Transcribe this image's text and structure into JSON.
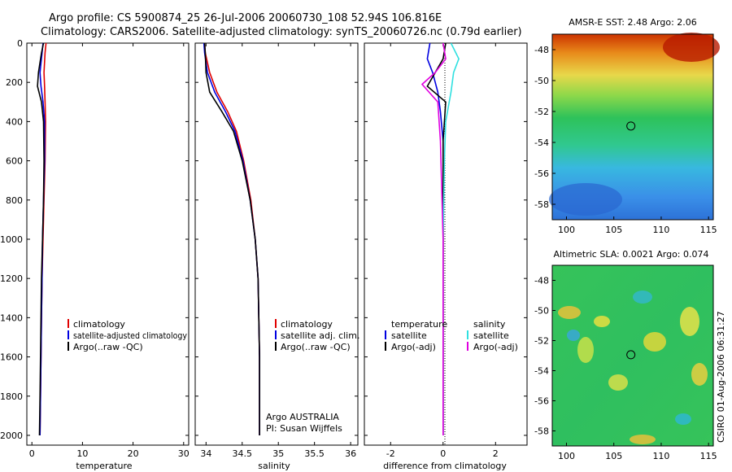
{
  "title_line1": "Argo profile: CS 5900874_25 26-Jul-2006 20060730_108 52.94S 106.816E",
  "title_line2": "Climatology: CARS2006. Satellite-adjusted climatology: synTS_20060726.nc (0.79d earlier)",
  "credit": "CSIRO 01-Aug-2006 06:31:27",
  "colors": {
    "red": "#e00000",
    "blue": "#0000e0",
    "black": "#000000",
    "cyan": "#30e0e0",
    "magenta": "#e000e0"
  },
  "chart_data": [
    {
      "type": "line",
      "xlabel": "temperature",
      "ylabel": "",
      "xlim": [
        -1,
        31
      ],
      "ylim": [
        2050,
        0
      ],
      "xticks": [
        0,
        10,
        20,
        30
      ],
      "yticks": [
        0,
        200,
        400,
        600,
        800,
        1000,
        1200,
        1400,
        1600,
        1800,
        2000
      ],
      "legend": {
        "placement": "center-right",
        "entries": [
          "climatology",
          "satellite-adjusted climatology",
          "Argo(..raw -QC)"
        ]
      },
      "series": [
        {
          "name": "climatology",
          "color": "red",
          "x": [
            2.8,
            2.6,
            2.4,
            2.5,
            2.6,
            2.7,
            2.6,
            2.4,
            2.2,
            2.0,
            1.9,
            1.8,
            1.7,
            1.6
          ],
          "y": [
            0,
            50,
            150,
            220,
            300,
            400,
            600,
            800,
            1000,
            1200,
            1400,
            1600,
            1800,
            2000
          ]
        },
        {
          "name": "satellite-adjusted climatology",
          "color": "blue",
          "x": [
            2.2,
            2.0,
            1.6,
            1.8,
            2.2,
            2.5,
            2.5,
            2.3,
            2.1,
            2.0,
            1.9,
            1.8,
            1.7,
            1.6
          ],
          "y": [
            0,
            50,
            150,
            220,
            300,
            400,
            600,
            800,
            1000,
            1200,
            1400,
            1600,
            1800,
            2000
          ]
        },
        {
          "name": "Argo(..raw -QC)",
          "color": "black",
          "x": [
            2.3,
            1.9,
            1.3,
            1.1,
            1.9,
            2.3,
            2.4,
            2.3,
            2.1,
            1.9,
            1.8,
            1.7,
            1.6,
            1.5
          ],
          "y": [
            0,
            50,
            150,
            220,
            300,
            400,
            600,
            800,
            1000,
            1200,
            1400,
            1600,
            1800,
            2000
          ]
        }
      ]
    },
    {
      "type": "line",
      "xlabel": "salinity",
      "ylabel": "",
      "xlim": [
        33.85,
        36.1
      ],
      "ylim": [
        2050,
        0
      ],
      "xticks": [
        34,
        34.5,
        35,
        35.5,
        36
      ],
      "yticks": [
        0,
        200,
        400,
        600,
        800,
        1000,
        1200,
        1400,
        1600,
        1800,
        2000
      ],
      "legend": {
        "placement": "center-right",
        "entries": [
          "climatology",
          "satellite adj. clim.",
          "Argo(..raw -QC)"
        ]
      },
      "annotations": [
        "Argo AUSTRALIA",
        "PI: Susan Wijffels"
      ],
      "series": [
        {
          "name": "climatology",
          "color": "red",
          "x": [
            33.98,
            33.99,
            34.05,
            34.15,
            34.3,
            34.42,
            34.52,
            34.62,
            34.68,
            34.72,
            34.73,
            34.74,
            34.74,
            34.74
          ],
          "y": [
            0,
            50,
            150,
            250,
            350,
            450,
            600,
            800,
            1000,
            1200,
            1400,
            1600,
            1800,
            2000
          ]
        },
        {
          "name": "satellite adj. clim.",
          "color": "blue",
          "x": [
            33.97,
            33.98,
            34.02,
            34.12,
            34.27,
            34.4,
            34.51,
            34.61,
            34.68,
            34.72,
            34.73,
            34.74,
            34.74,
            34.74
          ],
          "y": [
            0,
            50,
            150,
            250,
            350,
            450,
            600,
            800,
            1000,
            1200,
            1400,
            1600,
            1800,
            2000
          ]
        },
        {
          "name": "Argo(..raw -QC)",
          "color": "black",
          "x": [
            33.98,
            33.99,
            34.0,
            34.05,
            34.22,
            34.38,
            34.5,
            34.61,
            34.68,
            34.72,
            34.73,
            34.74,
            34.74,
            34.74
          ],
          "y": [
            0,
            50,
            150,
            250,
            350,
            450,
            600,
            800,
            1000,
            1200,
            1400,
            1600,
            1800,
            2000
          ]
        }
      ]
    },
    {
      "type": "line",
      "xlabel": "difference from climatology",
      "ylabel": "",
      "xlim": [
        -3,
        3.2
      ],
      "ylim": [
        2050,
        0
      ],
      "xticks": [
        -2,
        0,
        2
      ],
      "yticks": [
        0,
        200,
        400,
        600,
        800,
        1000,
        1200,
        1400,
        1600,
        1800,
        2000
      ],
      "legend": {
        "placement": "center",
        "entries": [
          "temperature",
          "satellite",
          "Argo(-adj)",
          "salinity",
          "satellite",
          "Argo(-adj)"
        ]
      },
      "series": [
        {
          "name": "satellite",
          "group": "temperature",
          "color": "blue",
          "x": [
            -0.5,
            -0.6,
            -0.4,
            -0.2,
            -0.1,
            0.0,
            0.0,
            0.0
          ],
          "y": [
            0,
            80,
            150,
            250,
            350,
            500,
            1000,
            2000
          ]
        },
        {
          "name": "Argo(-adj)",
          "group": "temperature",
          "color": "black",
          "x": [
            0.1,
            0.0,
            -0.3,
            -0.6,
            0.1,
            0.0,
            0.0,
            0.0
          ],
          "y": [
            0,
            80,
            150,
            220,
            300,
            500,
            1000,
            2000
          ]
        },
        {
          "name": "satellite",
          "group": "salinity",
          "color": "cyan",
          "x": [
            0.3,
            0.6,
            0.4,
            0.3,
            0.1,
            0.05,
            0.0,
            0.0
          ],
          "y": [
            0,
            80,
            150,
            250,
            400,
            600,
            1000,
            2000
          ]
        },
        {
          "name": "Argo(-adj)",
          "group": "salinity",
          "color": "magenta",
          "x": [
            0.0,
            0.1,
            -0.3,
            -0.8,
            -0.2,
            -0.1,
            0.0,
            0.0
          ],
          "y": [
            0,
            80,
            150,
            210,
            300,
            500,
            1000,
            2000
          ]
        }
      ]
    },
    {
      "type": "heatmap",
      "title": "AMSR-E SST: 2.48 Argo: 2.06",
      "xlim": [
        98.5,
        115.5
      ],
      "ylim": [
        -59,
        -47
      ],
      "xticks": [
        100,
        105,
        110,
        115
      ],
      "yticks": [
        -48,
        -50,
        -52,
        -54,
        -56,
        -58
      ],
      "marker": {
        "x": 106.8,
        "y": -52.94
      }
    },
    {
      "type": "heatmap",
      "title": "Altimetric SLA: 0.0021 Argo: 0.074",
      "xlim": [
        98.5,
        115.5
      ],
      "ylim": [
        -59,
        -47
      ],
      "xticks": [
        100,
        105,
        110,
        115
      ],
      "yticks": [
        -48,
        -50,
        -52,
        -54,
        -56,
        -58
      ],
      "marker": {
        "x": 106.8,
        "y": -52.94
      }
    }
  ]
}
